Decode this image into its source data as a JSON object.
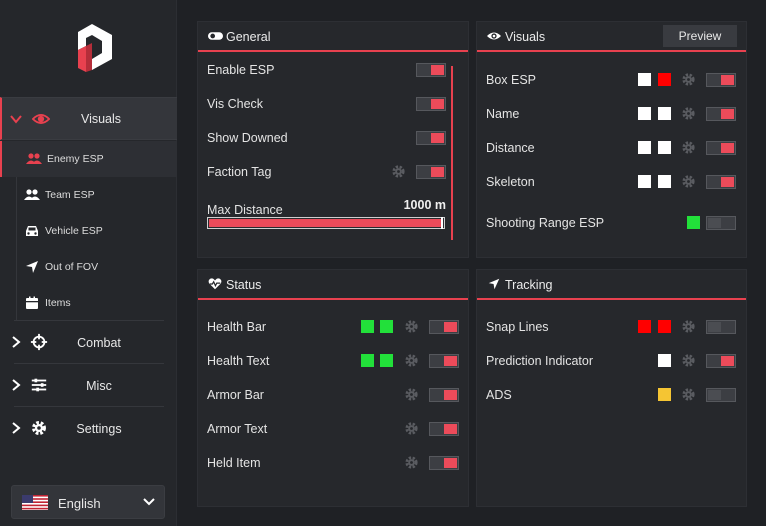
{
  "sidebar": {
    "nav": [
      {
        "label": "Visuals",
        "icon": "eye-icon",
        "expanded": true
      },
      {
        "label": "Combat",
        "icon": "crosshair-icon"
      },
      {
        "label": "Misc",
        "icon": "sliders-icon"
      },
      {
        "label": "Settings",
        "icon": "gear-icon"
      }
    ],
    "sub_items": [
      {
        "label": "Enemy ESP",
        "icon": "users-icon",
        "selected": true
      },
      {
        "label": "Team ESP",
        "icon": "users-icon"
      },
      {
        "label": "Vehicle ESP",
        "icon": "car-icon"
      },
      {
        "label": "Out of FOV",
        "icon": "navigation-arrow-icon"
      },
      {
        "label": "Items",
        "icon": "box-icon"
      }
    ],
    "language": {
      "value": "English",
      "icon": "us-flag-icon"
    }
  },
  "general": {
    "title": "General",
    "icon": "toggle-icon",
    "rows": [
      {
        "label": "Enable ESP",
        "on": true
      },
      {
        "label": "Vis Check",
        "on": true
      },
      {
        "label": "Show Downed",
        "on": true
      },
      {
        "label": "Faction Tag",
        "on": true,
        "gear": true
      }
    ],
    "max_distance": {
      "label": "Max Distance",
      "value": "1000 m",
      "fraction": 1.0
    }
  },
  "visuals": {
    "title": "Visuals",
    "icon": "eye-icon",
    "preview_label": "Preview",
    "rows": [
      {
        "label": "Box ESP",
        "colors": [
          "#ffffff",
          "#ff0000"
        ],
        "gear": true,
        "on": true
      },
      {
        "label": "Name",
        "colors": [
          "#ffffff",
          "#ffffff"
        ],
        "gear": true,
        "on": true
      },
      {
        "label": "Distance",
        "colors": [
          "#ffffff",
          "#ffffff"
        ],
        "gear": true,
        "on": true
      },
      {
        "label": "Skeleton",
        "colors": [
          "#ffffff",
          "#ffffff"
        ],
        "gear": true,
        "on": true
      },
      {
        "label": "Shooting Range ESP",
        "colors": [
          "#22e03a"
        ],
        "gear": false,
        "on": false
      }
    ]
  },
  "status": {
    "title": "Status",
    "icon": "heartbeat-icon",
    "rows": [
      {
        "label": "Health Bar",
        "colors": [
          "#22e03a",
          "#22e03a"
        ],
        "on": true
      },
      {
        "label": "Health Text",
        "colors": [
          "#22e03a",
          "#22e03a"
        ],
        "on": true
      },
      {
        "label": "Armor Bar",
        "colors": [],
        "on": true
      },
      {
        "label": "Armor Text",
        "colors": [],
        "on": true
      },
      {
        "label": "Held Item",
        "colors": [],
        "on": true
      }
    ]
  },
  "tracking": {
    "title": "Tracking",
    "icon": "navigation-arrow-icon",
    "rows": [
      {
        "label": "Snap Lines",
        "colors": [
          "#ff0000",
          "#ff0000"
        ],
        "on": false
      },
      {
        "label": "Prediction Indicator",
        "colors": [
          "#ffffff"
        ],
        "on": true
      },
      {
        "label": "ADS",
        "colors": [
          "#f5c533"
        ],
        "on": false
      }
    ]
  },
  "colors": {
    "accent": "#e8414f",
    "toggle_on": "#ec4b5a",
    "panel": "#26282c",
    "background": "#1f2125"
  }
}
